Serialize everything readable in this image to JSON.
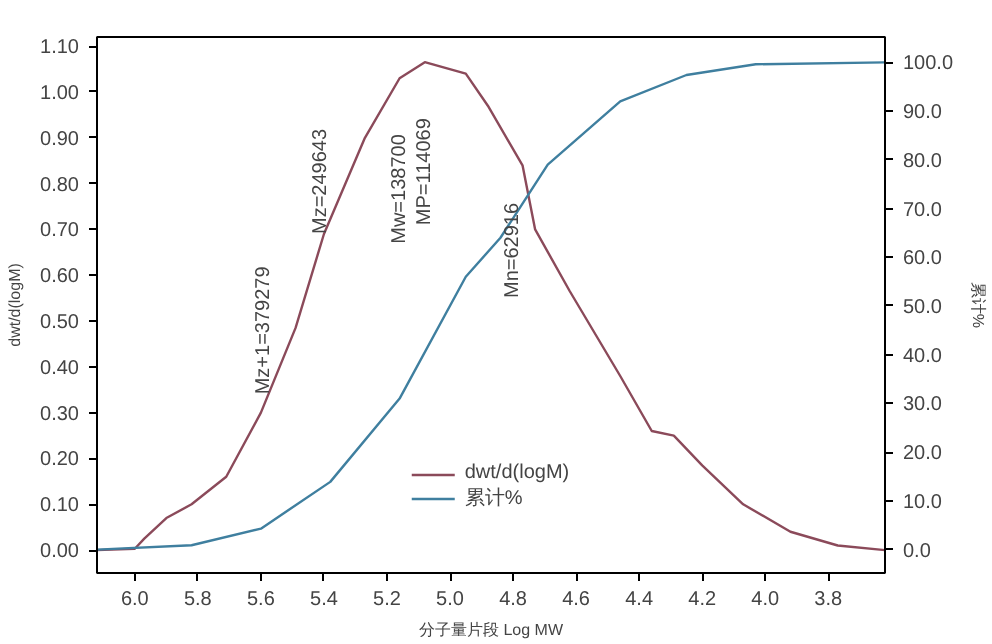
{
  "chart_data": {
    "type": "line",
    "xlabel": "分子量片段 Log MW",
    "ylabel": "dwt/d(logM)",
    "y2label": "累计%",
    "xlim": [
      6.12,
      3.62
    ],
    "xticks": [
      {
        "value": 6.0,
        "label": "6.0"
      },
      {
        "value": 5.8,
        "label": "5.8"
      },
      {
        "value": 5.6,
        "label": "5.6"
      },
      {
        "value": 5.4,
        "label": "5.4"
      },
      {
        "value": 5.2,
        "label": "5.2"
      },
      {
        "value": 5.0,
        "label": "5.0"
      },
      {
        "value": 4.8,
        "label": "4.8"
      },
      {
        "value": 4.6,
        "label": "4.6"
      },
      {
        "value": 4.4,
        "label": "4.4"
      },
      {
        "value": 4.2,
        "label": "4.2"
      },
      {
        "value": 4.0,
        "label": "4.0"
      },
      {
        "value": 3.8,
        "label": "3.8"
      }
    ],
    "ylim": [
      -0.05,
      1.12
    ],
    "yticks": [
      {
        "value": 0,
        "label": "0.00"
      },
      {
        "value": 0.1,
        "label": "0.10"
      },
      {
        "value": 0.2,
        "label": "0.20"
      },
      {
        "value": 0.3,
        "label": "0.30"
      },
      {
        "value": 0.4,
        "label": "0.40"
      },
      {
        "value": 0.5,
        "label": "0.50"
      },
      {
        "value": 0.6,
        "label": "0.60"
      },
      {
        "value": 0.7,
        "label": "0.70"
      },
      {
        "value": 0.8,
        "label": "0.80"
      },
      {
        "value": 0.9,
        "label": "0.90"
      },
      {
        "value": 1.0,
        "label": "1.00"
      },
      {
        "value": 1.1,
        "label": "1.10"
      }
    ],
    "y2lim": [
      -4.8,
      105.2
    ],
    "y2ticks": [
      {
        "value": 0,
        "label": "0.0"
      },
      {
        "value": 10,
        "label": "10.0"
      },
      {
        "value": 20,
        "label": "20.0"
      },
      {
        "value": 30,
        "label": "30.0"
      },
      {
        "value": 40,
        "label": "40.0"
      },
      {
        "value": 50,
        "label": "50.0"
      },
      {
        "value": 60,
        "label": "60.0"
      },
      {
        "value": 70,
        "label": "70.0"
      },
      {
        "value": 80,
        "label": "80.0"
      },
      {
        "value": 90,
        "label": "90.0"
      },
      {
        "value": 100,
        "label": "100.0"
      }
    ],
    "grid": false,
    "legend": "bottom",
    "marker": "none",
    "line_style": "solid",
    "series": [
      {
        "name": "dwt/d(logM)",
        "color": "#8b4a5a",
        "x": [
          6.12,
          6.0,
          5.97,
          5.9,
          5.82,
          5.71,
          5.6,
          5.49,
          5.4,
          5.27,
          5.16,
          5.08,
          4.95,
          4.88,
          4.77,
          4.73,
          4.62,
          4.46,
          4.36,
          4.29,
          4.2,
          4.07,
          3.92,
          3.77,
          3.62
        ],
        "values": [
          0,
          0.003,
          0.025,
          0.07,
          0.1,
          0.16,
          0.3,
          0.485,
          0.69,
          0.9,
          1.03,
          1.065,
          1.04,
          0.97,
          0.84,
          0.7,
          0.565,
          0.38,
          0.26,
          0.25,
          0.185,
          0.1,
          0.04,
          0.01,
          0
        ]
      },
      {
        "name": "累计%",
        "color": "#3f7f9f",
        "axis": "y2",
        "x": [
          6.12,
          5.82,
          5.6,
          5.38,
          5.16,
          4.95,
          4.84,
          4.75,
          4.69,
          4.46,
          4.25,
          4.03,
          3.62
        ],
        "values": [
          0,
          0.9,
          4.3,
          13.9,
          31,
          56,
          64,
          73,
          79,
          92,
          97.4,
          99.6,
          100
        ]
      }
    ],
    "annotations": [
      {
        "text": "Mz+1=379279",
        "x": 5.59,
        "y": 0.34
      },
      {
        "text": "Mz=249643",
        "x": 5.41,
        "y": 0.69
      },
      {
        "text": "Mw=138700",
        "x": 5.16,
        "y": 1.03
      },
      {
        "text": "MP=114069",
        "x": 5.08,
        "y": 1.065
      },
      {
        "text": "Mn=62916",
        "x": 4.8,
        "y": 0.88
      }
    ]
  }
}
